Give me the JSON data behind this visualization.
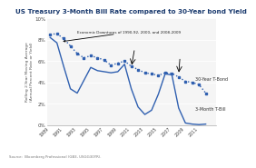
{
  "title": "US Treasury 3-Month Bill Rate compared to 30-Year bond Yield",
  "title_color": "#1a3a6e",
  "ylabel": "Rolling 2-Year Moving Average\n(Annual Percent Rate or Yield)",
  "source": "Source:  Bloomberg Professional (GB3, USGG30YR).",
  "years": [
    1989,
    1990,
    1991,
    1992,
    1993,
    1994,
    1995,
    1996,
    1997,
    1998,
    1999,
    2000,
    2001,
    2002,
    2003,
    2004,
    2005,
    2006,
    2007,
    2008,
    2009,
    2010,
    2011,
    2012
  ],
  "tbond_30yr": [
    8.5,
    8.55,
    8.1,
    7.4,
    6.7,
    6.3,
    6.5,
    6.3,
    6.1,
    5.6,
    5.8,
    6.0,
    5.5,
    5.2,
    4.9,
    4.8,
    4.65,
    4.9,
    4.85,
    4.5,
    4.1,
    4.0,
    3.8,
    3.0
  ],
  "tbill_3mo": [
    8.2,
    7.7,
    5.5,
    3.4,
    3.0,
    4.2,
    5.4,
    5.1,
    5.0,
    4.9,
    5.0,
    5.7,
    3.4,
    1.7,
    1.0,
    1.4,
    2.9,
    4.8,
    4.7,
    1.6,
    0.2,
    0.1,
    0.05,
    0.1
  ],
  "line_color": "#3060b0",
  "bg_color": "#f5f5f5",
  "ylim": [
    0,
    10
  ],
  "yticks": [
    0,
    2,
    4,
    6,
    8,
    10
  ],
  "ytick_labels": [
    "0%",
    "2%",
    "4%",
    "6%",
    "8%",
    "10%"
  ],
  "annotation_text": "Economic Downturns of 1990-92, 2000, and 2008-2009",
  "label_30yr": "30-Year T-Bond",
  "label_3mo": "3-Month T-Bill",
  "xtick_years": [
    1989,
    1991,
    1993,
    1995,
    1997,
    1999,
    2001,
    2003,
    2005,
    2007,
    2009,
    2011
  ]
}
